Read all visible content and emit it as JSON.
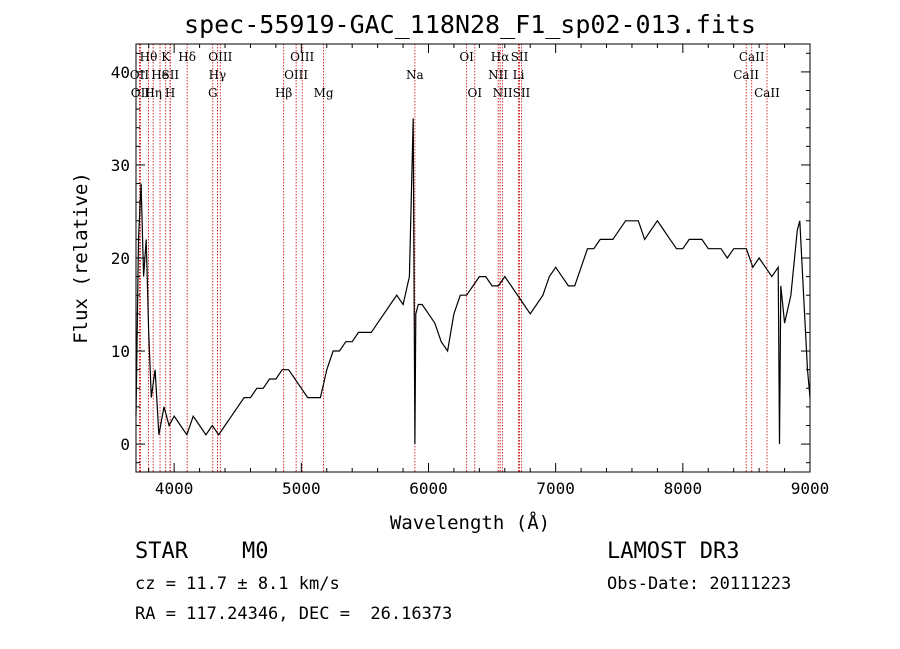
{
  "chart_data": {
    "type": "line",
    "title": "spec-55919-GAC_118N28_F1_sp02-013.fits",
    "xlabel": "Wavelength (Å)",
    "ylabel": "Flux (relative)",
    "xlim": [
      3700,
      9000
    ],
    "ylim": [
      -3,
      43
    ],
    "xticks": [
      "4000",
      "5000",
      "6000",
      "7000",
      "8000",
      "9000"
    ],
    "yticks": [
      "0",
      "10",
      "20",
      "30",
      "40"
    ],
    "grid": false,
    "series": [
      {
        "x": [
          3700,
          3720,
          3740,
          3760,
          3780,
          3800,
          3820,
          3850,
          3880,
          3920,
          3960,
          4000,
          4050,
          4100,
          4150,
          4200,
          4250,
          4300,
          4350,
          4400,
          4450,
          4500,
          4550,
          4600,
          4650,
          4700,
          4750,
          4800,
          4850,
          4900,
          4950,
          5000,
          5050,
          5100,
          5150,
          5200,
          5250,
          5300,
          5350,
          5400,
          5450,
          5500,
          5550,
          5600,
          5650,
          5700,
          5750,
          5800,
          5850,
          5880,
          5893,
          5900,
          5920,
          5950,
          6000,
          6050,
          6100,
          6150,
          6200,
          6250,
          6300,
          6350,
          6400,
          6450,
          6500,
          6550,
          6600,
          6650,
          6700,
          6750,
          6800,
          6850,
          6900,
          6950,
          7000,
          7050,
          7100,
          7150,
          7200,
          7250,
          7300,
          7350,
          7400,
          7450,
          7500,
          7550,
          7600,
          7650,
          7700,
          7750,
          7800,
          7850,
          7900,
          7950,
          8000,
          8050,
          8100,
          8150,
          8200,
          8250,
          8300,
          8350,
          8400,
          8450,
          8500,
          8550,
          8600,
          8650,
          8700,
          8750,
          8760,
          8770,
          8800,
          8850,
          8900,
          8920,
          8950,
          8980,
          9000
        ],
        "y": [
          3,
          22,
          28,
          18,
          22,
          12,
          5,
          8,
          1,
          4,
          2,
          3,
          2,
          1,
          3,
          2,
          1,
          2,
          1,
          2,
          3,
          4,
          5,
          5,
          6,
          6,
          7,
          7,
          8,
          8,
          7,
          6,
          5,
          5,
          5,
          8,
          10,
          10,
          11,
          11,
          12,
          12,
          12,
          13,
          14,
          15,
          16,
          15,
          18,
          35,
          0,
          14,
          15,
          15,
          14,
          13,
          11,
          10,
          14,
          16,
          16,
          17,
          18,
          18,
          17,
          17,
          18,
          17,
          16,
          15,
          14,
          15,
          16,
          18,
          19,
          18,
          17,
          17,
          19,
          21,
          21,
          22,
          22,
          22,
          23,
          24,
          24,
          24,
          22,
          23,
          24,
          23,
          22,
          21,
          21,
          22,
          22,
          22,
          21,
          21,
          21,
          20,
          21,
          21,
          21,
          19,
          20,
          19,
          18,
          19,
          0,
          17,
          13,
          16,
          23,
          24,
          16,
          8,
          5
        ]
      }
    ],
    "lines": [
      {
        "label": "Hθ",
        "x": 3798,
        "row": 0
      },
      {
        "label": "OII",
        "x": 3727,
        "row": 1
      },
      {
        "label": "OII",
        "x": 3735,
        "row": 2
      },
      {
        "label": "Hη",
        "x": 3835,
        "row": 2
      },
      {
        "label": "K",
        "x": 3934,
        "row": 0
      },
      {
        "label": "He",
        "x": 3889,
        "row": 1
      },
      {
        "label": "SII",
        "x": 3970,
        "row": 1
      },
      {
        "label": "H",
        "x": 3968,
        "row": 2
      },
      {
        "label": "Hδ",
        "x": 4102,
        "row": 0
      },
      {
        "label": "OIII",
        "x": 4363,
        "row": 0
      },
      {
        "label": "Hγ",
        "x": 4340,
        "row": 1
      },
      {
        "label": "G",
        "x": 4304,
        "row": 2
      },
      {
        "label": "OIII",
        "x": 5007,
        "row": 0
      },
      {
        "label": "OIII",
        "x": 4959,
        "row": 1
      },
      {
        "label": "Hβ",
        "x": 4861,
        "row": 2
      },
      {
        "label": "Mg",
        "x": 5175,
        "row": 2
      },
      {
        "label": "Na",
        "x": 5893,
        "row": 1
      },
      {
        "label": "OI",
        "x": 6300,
        "row": 0
      },
      {
        "label": "OI",
        "x": 6364,
        "row": 2
      },
      {
        "label": "Hα",
        "x": 6563,
        "row": 0
      },
      {
        "label": "SII",
        "x": 6716,
        "row": 0
      },
      {
        "label": "NII",
        "x": 6548,
        "row": 1
      },
      {
        "label": "Li",
        "x": 6708,
        "row": 1
      },
      {
        "label": "NII",
        "x": 6583,
        "row": 2
      },
      {
        "label": "SII",
        "x": 6731,
        "row": 2
      },
      {
        "label": "CaII",
        "x": 8542,
        "row": 0
      },
      {
        "label": "CaII",
        "x": 8498,
        "row": 1
      },
      {
        "label": "CaII",
        "x": 8662,
        "row": 2
      }
    ],
    "line_color": "#cc0000"
  },
  "info": {
    "class_label": "STAR",
    "subclass": "M0",
    "survey": "LAMOST DR3",
    "cz": "cz = 11.7 ± 8.1 km/s",
    "obs_date": "Obs-Date: 20111223",
    "coords": "RA = 117.24346, DEC =  26.16373"
  }
}
